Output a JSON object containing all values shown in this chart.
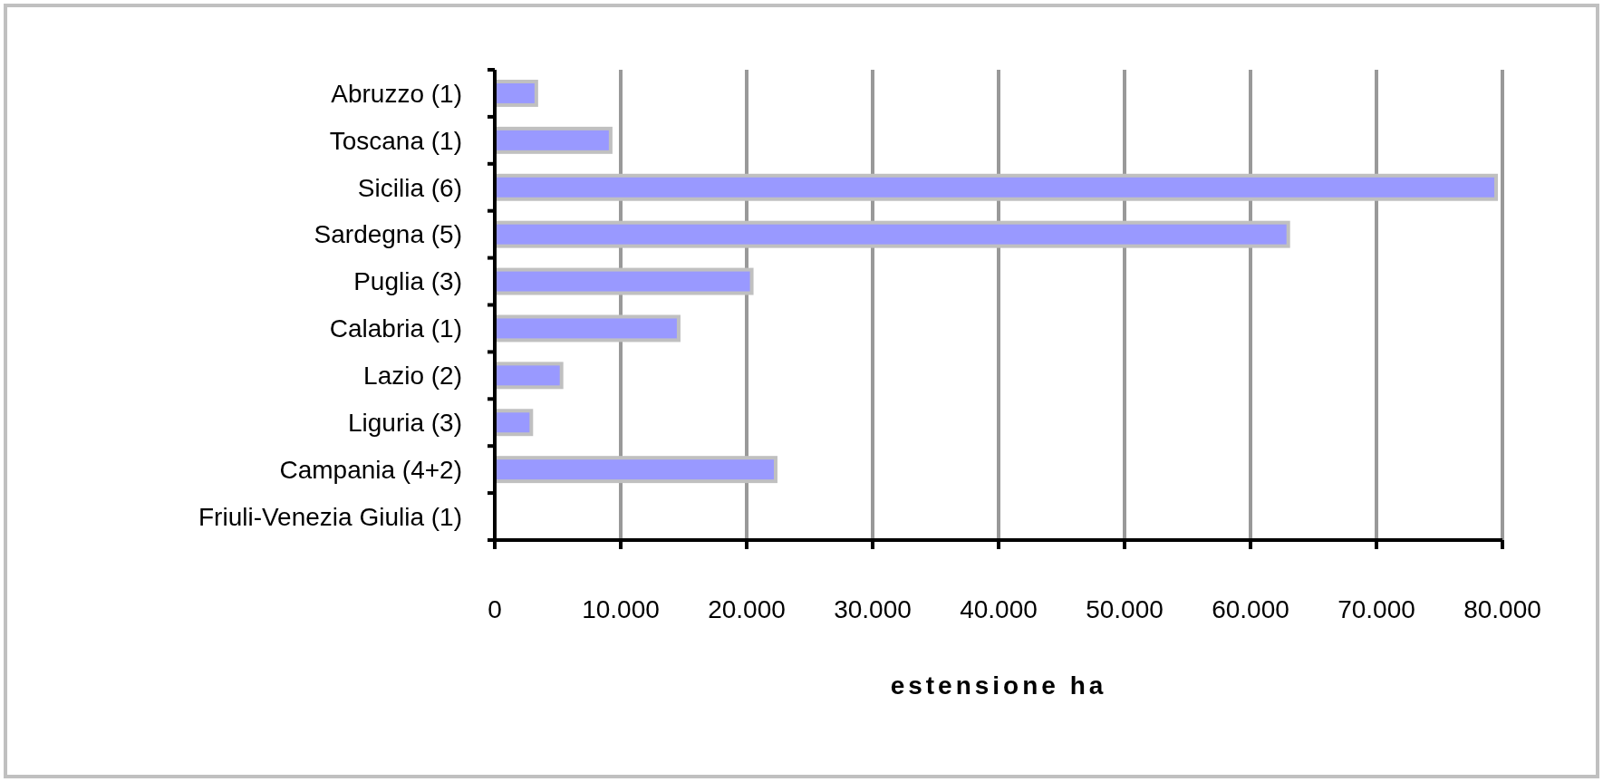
{
  "chart_data": {
    "type": "bar",
    "orientation": "horizontal",
    "xlabel": "estensione ha",
    "categories": [
      "Abruzzo (1)",
      "Toscana (1)",
      "Sicilia (6)",
      "Sardegna (5)",
      "Puglia (3)",
      "Calabria (1)",
      "Lazio (2)",
      "Liguria (3)",
      "Campania (4+2)",
      "Friuli-Venezia Giulia (1)"
    ],
    "values": [
      3300,
      9200,
      79500,
      63000,
      20400,
      14600,
      5300,
      2900,
      22300,
      0
    ],
    "color": "#9999ff",
    "xlim": [
      0,
      80000
    ],
    "xticks": [
      0,
      {
        "value": 10000,
        "label": "10.000"
      },
      {
        "value": 20000,
        "label": "20.000"
      },
      {
        "value": 30000,
        "label": "30.000"
      },
      {
        "value": 40000,
        "label": "40.000"
      },
      {
        "value": 50000,
        "label": "50.000"
      },
      {
        "value": 60000,
        "label": "60.000"
      },
      {
        "value": 70000,
        "label": "70.000"
      },
      {
        "value": 80000,
        "label": "80.000"
      }
    ],
    "grid": "x"
  }
}
